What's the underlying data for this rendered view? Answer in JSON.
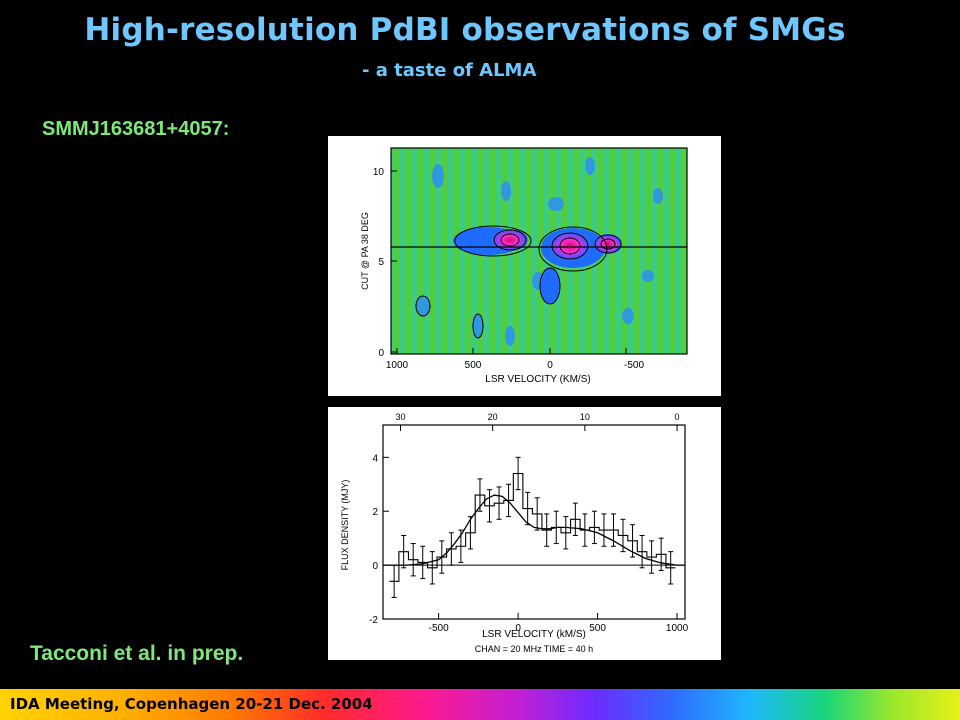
{
  "slide": {
    "title": "High-resolution PdBI observations of SMGs",
    "subtitle": "- a taste of ALMA",
    "object_label": "SMMJ163681+4057:",
    "credit": "Tacconi et al. in prep.",
    "footer": "IDA Meeting, Copenhagen 20-21 Dec. 2004"
  },
  "pv_diagram": {
    "ylabel": "CUT @ PA 38 DEG",
    "xlabel": "LSR VELOCITY (KM/S)",
    "x_ticks": [
      "1000",
      "500",
      "0",
      "-500"
    ],
    "y_ticks": [
      "10",
      "5",
      "0"
    ],
    "colors": {
      "background": "#39c94a",
      "hot": "#ff2ad4",
      "cold": "#1f6bff"
    }
  },
  "chart_data": {
    "type": "line",
    "xlabel": "LSR VELOCITY (kM/S)",
    "ylabel": "FLUX DENSITY (MJY)",
    "note": "CHAN = 20 MHz      TIME = 40 h",
    "x_ticks": [
      "-500",
      "0",
      "500",
      "1000"
    ],
    "y_ticks": [
      "4",
      "2",
      "0",
      "-2"
    ],
    "top_ticks": [
      "30",
      "20",
      "10",
      "0"
    ],
    "xlim": [
      -850,
      1050
    ],
    "ylim": [
      -2.0,
      5.2
    ],
    "steps": {
      "x": [
        -780,
        -720,
        -660,
        -600,
        -540,
        -480,
        -420,
        -360,
        -300,
        -240,
        -180,
        -120,
        -60,
        0,
        60,
        120,
        180,
        240,
        300,
        360,
        420,
        480,
        540,
        600,
        660,
        720,
        780,
        840,
        900,
        960
      ],
      "y": [
        -0.6,
        0.5,
        0.2,
        0.1,
        -0.1,
        0.3,
        0.6,
        0.7,
        1.2,
        2.6,
        2.2,
        2.3,
        2.4,
        3.4,
        2.1,
        1.9,
        1.3,
        1.4,
        1.2,
        1.7,
        1.3,
        1.4,
        1.3,
        1.3,
        1.1,
        0.9,
        0.5,
        0.3,
        0.4,
        -0.1
      ],
      "err": [
        0.6,
        0.6,
        0.6,
        0.6,
        0.6,
        0.6,
        0.6,
        0.6,
        0.6,
        0.6,
        0.6,
        0.6,
        0.6,
        0.6,
        0.6,
        0.6,
        0.6,
        0.6,
        0.6,
        0.6,
        0.6,
        0.6,
        0.6,
        0.6,
        0.6,
        0.6,
        0.6,
        0.6,
        0.6,
        0.6
      ]
    },
    "fit": {
      "x": [
        -850,
        -700,
        -600,
        -500,
        -450,
        -400,
        -350,
        -300,
        -250,
        -200,
        -150,
        -100,
        -50,
        0,
        50,
        100,
        150,
        200,
        250,
        300,
        400,
        500,
        600,
        700,
        800,
        900,
        1000,
        1050
      ],
      "y": [
        0.0,
        0.0,
        0.05,
        0.2,
        0.45,
        0.8,
        1.2,
        1.7,
        2.1,
        2.45,
        2.6,
        2.55,
        2.3,
        1.95,
        1.6,
        1.4,
        1.35,
        1.35,
        1.4,
        1.4,
        1.35,
        1.2,
        0.9,
        0.55,
        0.25,
        0.08,
        0.0,
        0.0
      ]
    }
  }
}
